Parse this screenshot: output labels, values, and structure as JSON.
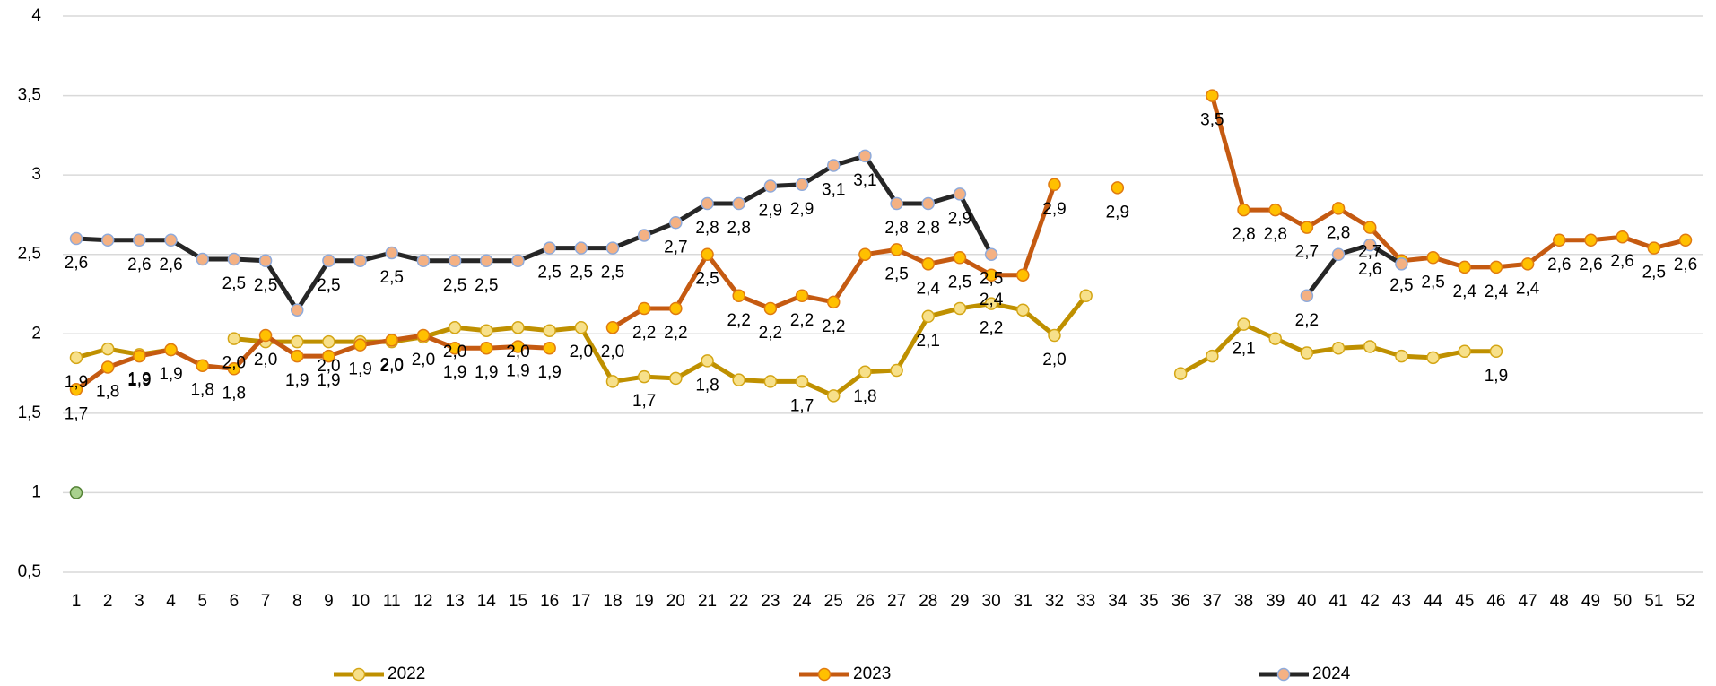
{
  "chart_data": {
    "type": "line",
    "categories": [
      "1",
      "2",
      "3",
      "4",
      "5",
      "6",
      "7",
      "8",
      "9",
      "10",
      "11",
      "12",
      "13",
      "14",
      "15",
      "16",
      "17",
      "18",
      "19",
      "20",
      "21",
      "22",
      "23",
      "24",
      "25",
      "26",
      "27",
      "28",
      "29",
      "30",
      "31",
      "32",
      "33",
      "34",
      "35",
      "36",
      "37",
      "38",
      "39",
      "40",
      "41",
      "42",
      "43",
      "44",
      "45",
      "46",
      "47",
      "48",
      "49",
      "50",
      "51",
      "52"
    ],
    "ylim": [
      0.5,
      4
    ],
    "yticks": [
      {
        "value": 0.5,
        "label": "0,5"
      },
      1,
      {
        "value": 1.5,
        "label": "1,5"
      },
      2,
      {
        "value": 2.5,
        "label": "2,5"
      },
      3,
      {
        "value": 3.5,
        "label": "3,5"
      },
      4
    ],
    "grid": true,
    "legend": "bottom",
    "series": [
      {
        "name": "2022",
        "color": "#bf9000",
        "marker_color": "#f7e08a",
        "marker_edge": "#d4a514",
        "values": [
          1.85,
          1.905,
          1.87,
          1.9,
          null,
          1.97,
          1.95,
          1.95,
          1.95,
          1.95,
          1.95,
          1.98,
          2.04,
          2.02,
          2.04,
          2.02,
          2.04,
          1.7,
          1.73,
          1.72,
          1.83,
          1.71,
          1.7,
          1.7,
          1.61,
          1.76,
          1.77,
          2.11,
          2.16,
          2.19,
          2.15,
          1.99,
          2.24,
          null,
          null,
          1.75,
          1.86,
          2.06,
          1.97,
          1.88,
          1.91,
          1.92,
          1.86,
          1.85,
          1.89,
          1.89,
          null,
          null,
          null,
          null,
          null,
          null
        ],
        "value_labels": [
          "1,9",
          null,
          "1,9",
          null,
          null,
          "2,0",
          null,
          null,
          "2,0",
          null,
          "2,0",
          null,
          "2,0",
          null,
          "2,0",
          null,
          "2,0",
          null,
          "1,7",
          null,
          "1,8",
          null,
          null,
          "1,7",
          null,
          "1,8",
          null,
          "2,1",
          null,
          "2,2",
          null,
          "2,0",
          null,
          null,
          null,
          null,
          null,
          "2,1",
          null,
          null,
          null,
          null,
          null,
          null,
          null,
          "1,9",
          null,
          null,
          null,
          null,
          null,
          null
        ]
      },
      {
        "name": "2023",
        "color": "#c55a11",
        "marker_color": "#ffc000",
        "marker_edge": "#e07a10",
        "values": [
          1.65,
          1.79,
          1.86,
          1.9,
          1.8,
          1.78,
          1.99,
          1.86,
          1.86,
          1.93,
          1.96,
          1.99,
          1.91,
          1.91,
          1.92,
          1.91,
          null,
          2.04,
          2.16,
          2.16,
          2.5,
          2.24,
          2.16,
          2.24,
          2.2,
          2.5,
          2.53,
          2.44,
          2.48,
          2.37,
          2.37,
          2.94,
          null,
          2.92,
          null,
          null,
          3.5,
          2.78,
          2.78,
          2.67,
          2.79,
          2.67,
          2.46,
          2.48,
          2.42,
          2.42,
          2.44,
          2.59,
          2.59,
          2.61,
          2.54,
          2.59
        ],
        "value_labels": [
          "1,7",
          "1,8",
          "1,9",
          "1,9",
          "1,8",
          "1,8",
          "2,0",
          "1,9",
          "1,9",
          "1,9",
          "2,0",
          "2,0",
          "1,9",
          "1,9",
          "1,9",
          "1,9",
          null,
          "2,0",
          "2,2",
          "2,2",
          "2,5",
          "2,2",
          "2,2",
          "2,2",
          "2,2",
          null,
          "2,5",
          "2,4",
          "2,5",
          "2,4",
          null,
          "2,9",
          null,
          "2,9",
          null,
          null,
          "3,5",
          "2,8",
          "2,8",
          "2,7",
          "2,8",
          "2,7",
          "2,5",
          "2,5",
          "2,4",
          "2,4",
          "2,4",
          "2,6",
          "2,6",
          "2,6",
          "2,5",
          "2,6"
        ]
      },
      {
        "name": "2024",
        "color": "#262626",
        "marker_color": "#f4b183",
        "marker_edge": "#8eaadb",
        "values": [
          2.6,
          2.59,
          2.59,
          2.59,
          2.47,
          2.47,
          2.46,
          2.15,
          2.46,
          2.46,
          2.51,
          2.46,
          2.46,
          2.46,
          2.46,
          2.54,
          2.54,
          2.54,
          2.62,
          2.7,
          2.82,
          2.82,
          2.93,
          2.94,
          3.06,
          3.12,
          2.82,
          2.82,
          2.88,
          2.5,
          null,
          null,
          null,
          null,
          null,
          null,
          null,
          null,
          null,
          2.24,
          2.5,
          2.56,
          2.44,
          null,
          null,
          null,
          null,
          null,
          null,
          null,
          null,
          null
        ],
        "value_labels": [
          "2,6",
          null,
          "2,6",
          "2,6",
          null,
          "2,5",
          "2,5",
          null,
          "2,5",
          null,
          "2,5",
          null,
          "2,5",
          "2,5",
          null,
          "2,5",
          "2,5",
          "2,5",
          null,
          "2,7",
          "2,8",
          "2,8",
          "2,9",
          "2,9",
          "3,1",
          "3,1",
          "2,8",
          "2,8",
          "2,9",
          "2,5",
          null,
          null,
          null,
          null,
          null,
          null,
          null,
          null,
          null,
          "2,2",
          null,
          "2,6",
          null,
          null,
          null,
          null,
          null,
          null,
          null,
          null,
          null,
          null
        ]
      },
      {
        "color": "#548235",
        "marker_color": "#a9d18e",
        "marker_edge": "#548235",
        "values": [
          1,
          null,
          null,
          null,
          null,
          null,
          null,
          null,
          null,
          null,
          null,
          null,
          null,
          null,
          null,
          null,
          null,
          null,
          null,
          null,
          null,
          null,
          null,
          null,
          null,
          null,
          null,
          null,
          null,
          null,
          null,
          null,
          null,
          null,
          null,
          null,
          null,
          null,
          null,
          null,
          null,
          null,
          null,
          null,
          null,
          null,
          null,
          null,
          null,
          null,
          null,
          null
        ]
      }
    ]
  }
}
